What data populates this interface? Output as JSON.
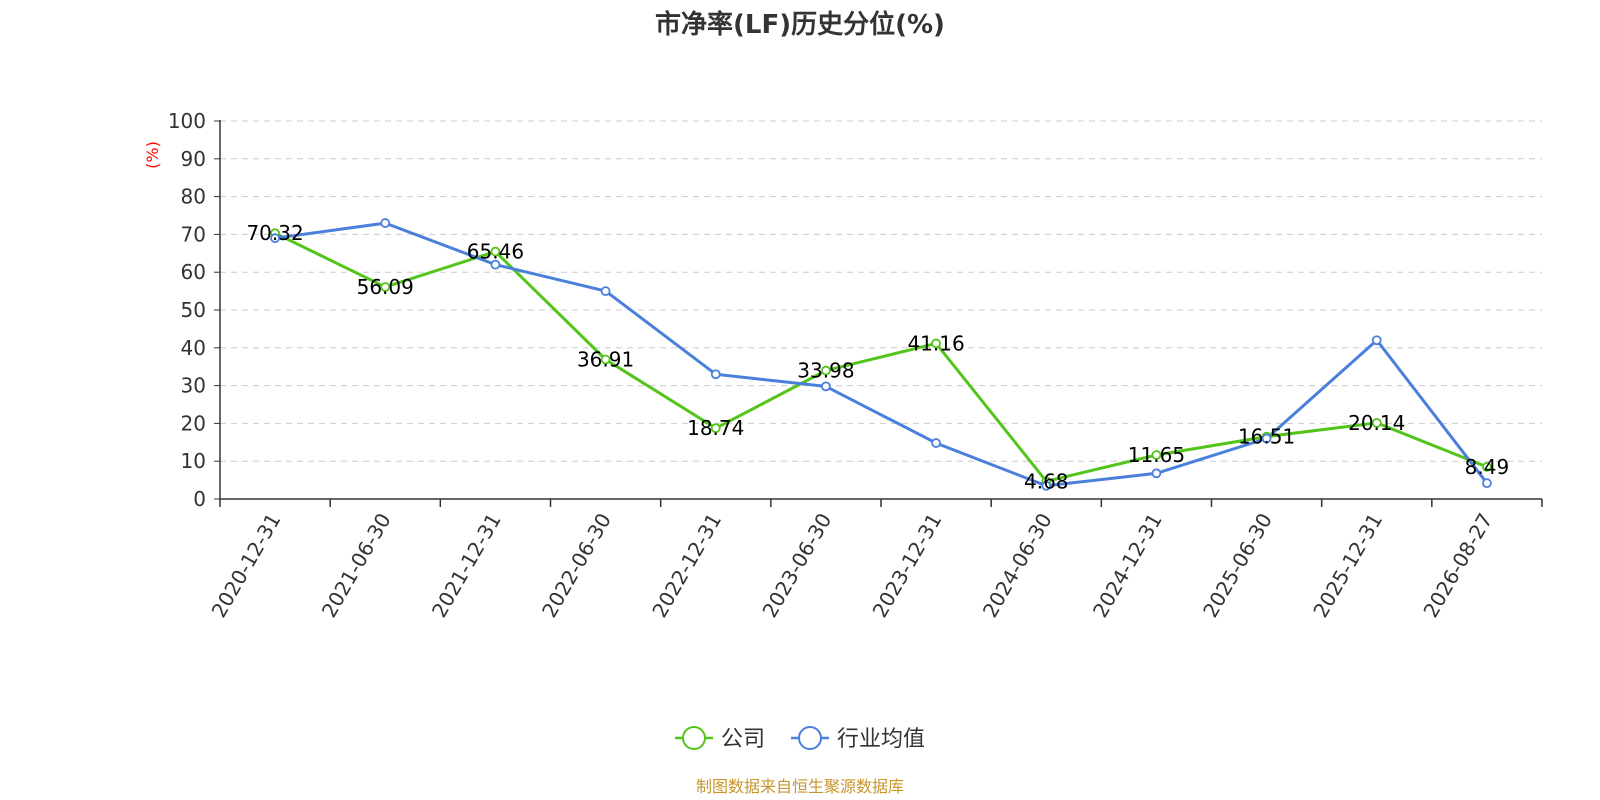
{
  "chart_data": {
    "type": "line",
    "title": "市净率(LF)历史分位(%)",
    "y_unit_label": "(%)",
    "categories": [
      "2020-12-31",
      "2021-06-30",
      "2021-12-31",
      "2022-06-30",
      "2022-12-31",
      "2023-06-30",
      "2023-12-31",
      "2024-06-30",
      "2024-12-31",
      "2025-06-30",
      "2025-12-31",
      "2026-08-27"
    ],
    "ylim": [
      0,
      100
    ],
    "yticks": [
      0,
      10,
      20,
      30,
      40,
      50,
      60,
      70,
      80,
      90,
      100
    ],
    "grid": true,
    "legend_position": "bottom-center",
    "series": [
      {
        "name": "公司",
        "color": "#52c41a",
        "show_labels": true,
        "values": [
          70.32,
          56.09,
          65.46,
          36.91,
          18.74,
          33.98,
          41.16,
          4.68,
          11.65,
          16.51,
          20.14,
          8.49
        ],
        "labels": [
          "70.32",
          "56.09",
          "65.46",
          "36.91",
          "18.74",
          "33.98",
          "41.16",
          "4.68",
          "11.65",
          "16.51",
          "20.14",
          "8.49"
        ]
      },
      {
        "name": "行业均值",
        "color": "#4a7fdc",
        "show_labels": false,
        "values": [
          69.0,
          73.0,
          62.0,
          55.0,
          33.0,
          29.8,
          14.8,
          3.5,
          6.8,
          16.0,
          42.0,
          4.2
        ]
      }
    ]
  },
  "footer": {
    "source": "制图数据来自恒生聚源数据库",
    "color": "#c8962d"
  }
}
